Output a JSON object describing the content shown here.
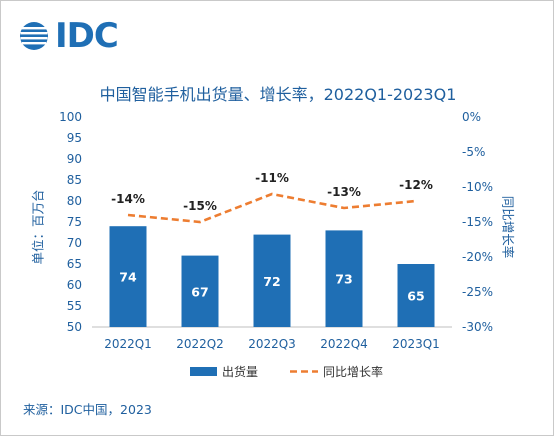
{
  "brand": {
    "name": "IDC"
  },
  "title": "中国智能手机出货量、增长率，2022Q1-2023Q1",
  "source": "来源：IDC中国，2023",
  "chart_data": {
    "type": "bar",
    "categories": [
      "2022Q1",
      "2022Q2",
      "2022Q3",
      "2022Q4",
      "2023Q1"
    ],
    "series": [
      {
        "name": "出货量",
        "type": "bar",
        "axis": "left",
        "values": [
          74,
          67,
          72,
          73,
          65
        ],
        "labels": [
          "74",
          "67",
          "72",
          "73",
          "65"
        ]
      },
      {
        "name": "同比增长率",
        "type": "line",
        "axis": "right",
        "values": [
          -14,
          -15,
          -11,
          -13,
          -12
        ],
        "labels": [
          "-14%",
          "-15%",
          "-11%",
          "-13%",
          "-12%"
        ]
      }
    ],
    "ylabel": "单位：百万台",
    "y2label": "同比增长率",
    "ylim": [
      50,
      100
    ],
    "y2lim": [
      -30,
      0
    ],
    "yticks": [
      "50",
      "55",
      "60",
      "65",
      "70",
      "75",
      "80",
      "85",
      "90",
      "95",
      "100"
    ],
    "y2ticks": [
      "-30%",
      "-25%",
      "-20%",
      "-15%",
      "-10%",
      "-5%",
      "0%"
    ],
    "legend_position": "bottom",
    "grid": false,
    "colors": {
      "bar": "#1f6fb5",
      "line": "#ed7d31",
      "text": "#1f5f9e",
      "barLabel": "#ffffff"
    }
  }
}
